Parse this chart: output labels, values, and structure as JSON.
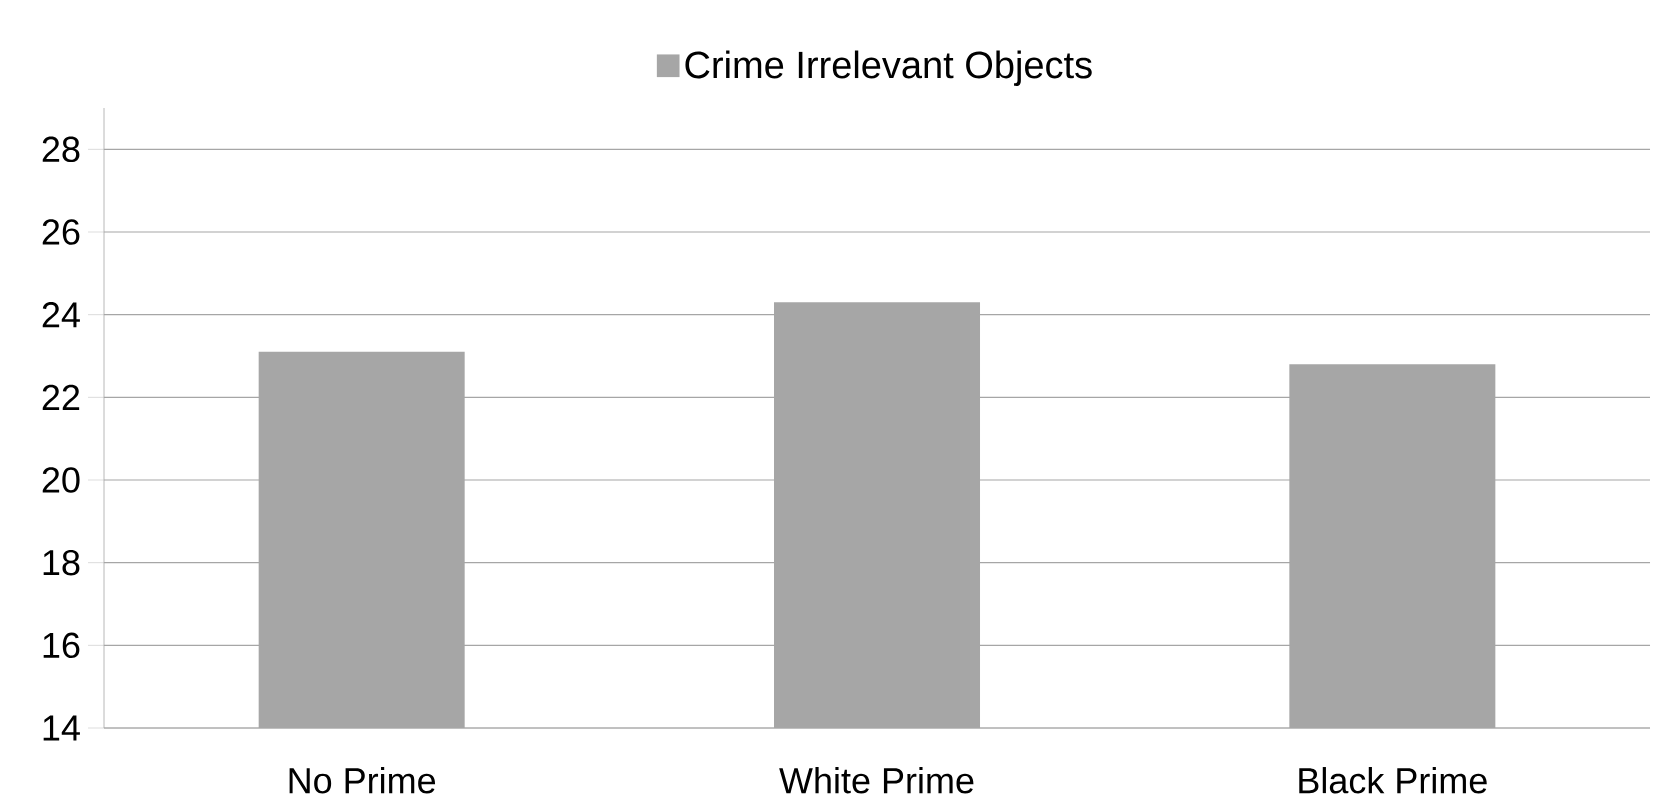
{
  "chart_data": {
    "type": "bar",
    "categories": [
      "No Prime",
      "White Prime",
      "Black Prime"
    ],
    "series": [
      {
        "name": "Crime Irrelevant Objects",
        "color": "#a6a6a6",
        "values": [
          23.1,
          24.3,
          22.8
        ]
      }
    ],
    "ylim": [
      14,
      29
    ],
    "yticks": [
      14,
      16,
      18,
      20,
      22,
      24,
      26,
      28
    ],
    "grid": "y",
    "legend": "top"
  }
}
